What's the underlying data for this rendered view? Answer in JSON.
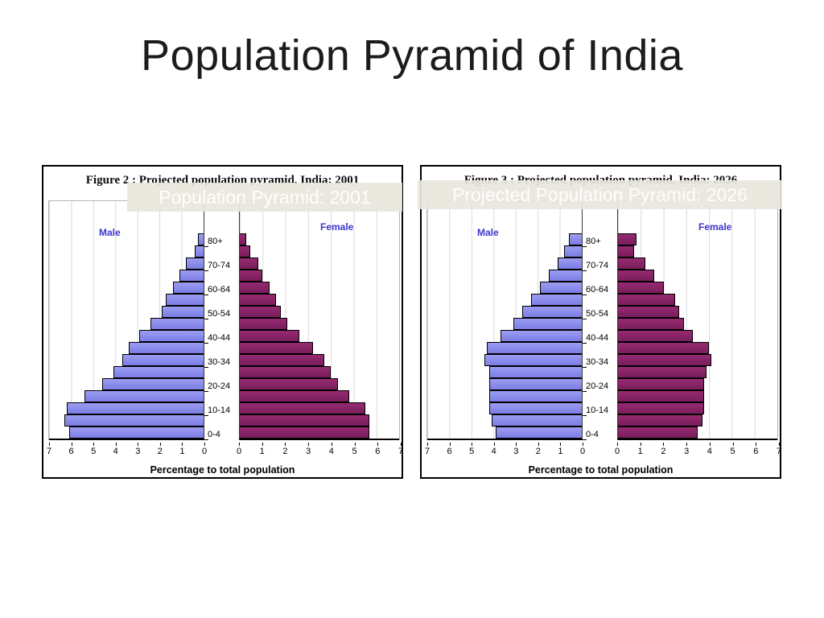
{
  "slide": {
    "title": "Population Pyramid of India"
  },
  "colors": {
    "male_bar": "#8083e8",
    "female_bar": "#8b2570",
    "gender_label": "#3c35cb",
    "gridline": "#d9d9d9",
    "overlay_bg": "#e9e6dd",
    "overlay_text": "#ffffff",
    "title_text": "#1c1c1c"
  },
  "chart_data": [
    {
      "type": "bar",
      "variant": "population-pyramid",
      "figure_caption": "Figure 2 : Projected population pyramid, India: 2001",
      "overlay_label": "Population Pyramid: 2001",
      "left_series_label": "Male",
      "right_series_label": "Female",
      "xlabel": "Percentage to total population",
      "age_groups": [
        "0-4",
        "5-9",
        "10-14",
        "15-19",
        "20-24",
        "25-29",
        "30-34",
        "35-39",
        "40-44",
        "45-49",
        "50-54",
        "55-59",
        "60-64",
        "65-69",
        "70-74",
        "75-79",
        "80+"
      ],
      "labeled_groups": [
        "0-4",
        "10-14",
        "20-24",
        "30-34",
        "40-44",
        "50-54",
        "60-64",
        "70-74",
        "80+"
      ],
      "series": [
        {
          "name": "Male",
          "values": [
            6.1,
            6.3,
            6.2,
            5.4,
            4.6,
            4.1,
            3.7,
            3.4,
            2.9,
            2.4,
            1.9,
            1.7,
            1.4,
            1.1,
            0.8,
            0.4,
            0.25
          ]
        },
        {
          "name": "Female",
          "values": [
            5.7,
            5.7,
            5.5,
            4.8,
            4.3,
            4.0,
            3.7,
            3.2,
            2.6,
            2.1,
            1.8,
            1.6,
            1.3,
            1.0,
            0.8,
            0.45,
            0.3
          ]
        }
      ],
      "xlim": [
        0,
        7
      ],
      "x_ticks": [
        0,
        1,
        2,
        3,
        4,
        5,
        6,
        7
      ],
      "grid": true,
      "legend_position": "none"
    },
    {
      "type": "bar",
      "variant": "population-pyramid",
      "figure_caption": "Figure 3 : Projected population pyramid, India: 2026",
      "overlay_label": "Projected Population Pyramid: 2026",
      "left_series_label": "Male",
      "right_series_label": "Female",
      "xlabel": "Percentage to total population",
      "age_groups": [
        "0-4",
        "5-9",
        "10-14",
        "15-19",
        "20-24",
        "25-29",
        "30-34",
        "35-39",
        "40-44",
        "45-49",
        "50-54",
        "55-59",
        "60-64",
        "65-69",
        "70-74",
        "75-79",
        "80+"
      ],
      "labeled_groups": [
        "0-4",
        "10-14",
        "20-24",
        "30-34",
        "40-44",
        "50-54",
        "60-64",
        "70-74",
        "80+"
      ],
      "series": [
        {
          "name": "Male",
          "values": [
            3.9,
            4.1,
            4.2,
            4.2,
            4.2,
            4.2,
            4.4,
            4.3,
            3.7,
            3.1,
            2.7,
            2.3,
            1.9,
            1.5,
            1.1,
            0.8,
            0.6
          ]
        },
        {
          "name": "Female",
          "values": [
            3.5,
            3.7,
            3.8,
            3.8,
            3.8,
            3.9,
            4.1,
            4.0,
            3.3,
            2.9,
            2.7,
            2.5,
            2.0,
            1.6,
            1.2,
            0.7,
            0.8
          ]
        }
      ],
      "xlim": [
        0,
        7
      ],
      "x_ticks": [
        0,
        1,
        2,
        3,
        4,
        5,
        6,
        7
      ],
      "grid": true,
      "legend_position": "none"
    }
  ]
}
